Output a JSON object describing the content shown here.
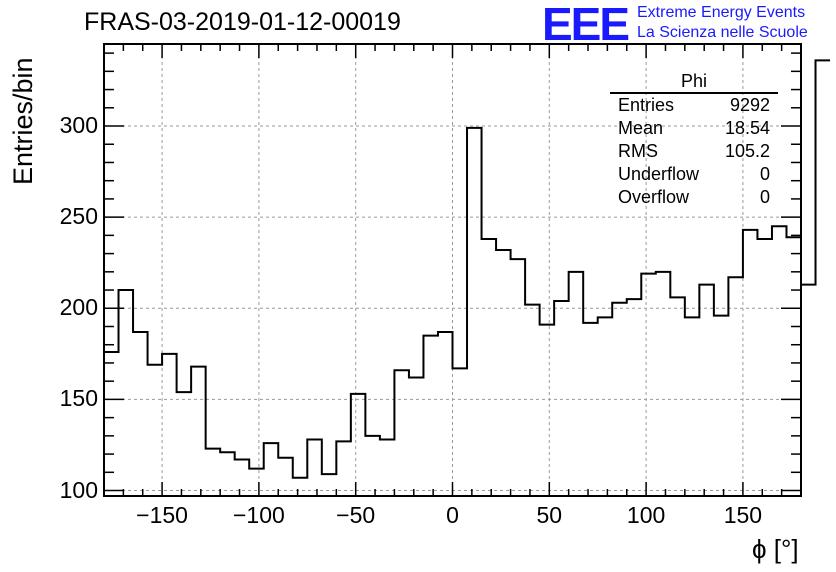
{
  "title": "FRAS-03-2019-01-12-00019",
  "logo": {
    "mark": "EEE",
    "line1": "Extreme Energy Events",
    "line2": "La Scienza nelle Scuole",
    "color": "#1a1aff"
  },
  "stats_box": {
    "name": "Phi",
    "rows": [
      {
        "label": "Entries",
        "value": "9292"
      },
      {
        "label": "Mean",
        "value": "18.54"
      },
      {
        "label": "RMS",
        "value": "105.2"
      },
      {
        "label": "Underflow",
        "value": "0"
      },
      {
        "label": "Overflow",
        "value": "0"
      }
    ]
  },
  "chart_data": {
    "type": "histogram",
    "title": "FRAS-03-2019-01-12-00019",
    "xlabel": "ϕ [°]",
    "ylabel": "Entries/bin",
    "xlim": [
      -180,
      180
    ],
    "ylim": [
      97,
      345
    ],
    "xticks": [
      -150,
      -100,
      -50,
      0,
      50,
      100,
      150
    ],
    "xtick_labels": [
      "−150",
      "−100",
      "−50",
      "0",
      "50",
      "100",
      "150"
    ],
    "yticks": [
      100,
      150,
      200,
      250,
      300
    ],
    "grid": true,
    "bin_width": 7.5,
    "bins_start": -180,
    "values": [
      176,
      210,
      187,
      169,
      175,
      154,
      168,
      123,
      121,
      117,
      112,
      126,
      118,
      107,
      128,
      109,
      127,
      153,
      130,
      128,
      166,
      162,
      185,
      187,
      167,
      299,
      238,
      232,
      227,
      202,
      191,
      204,
      220,
      192,
      195,
      203,
      205,
      219,
      220,
      206,
      195,
      213,
      196,
      217,
      243,
      238,
      245,
      239,
      213,
      336
    ]
  }
}
